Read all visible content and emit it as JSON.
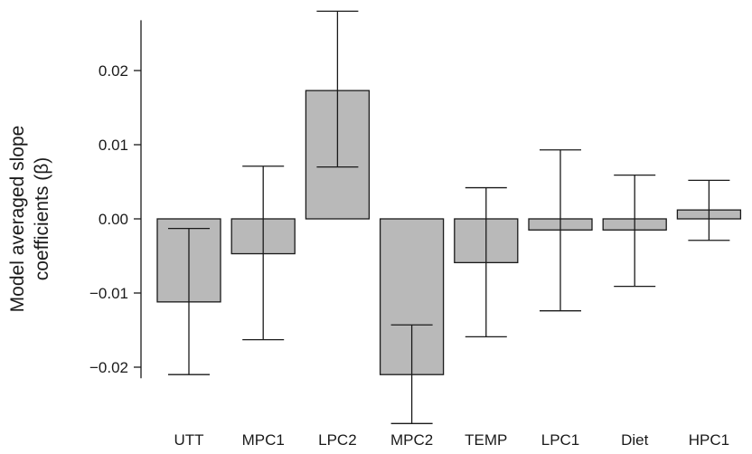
{
  "chart_data": {
    "type": "bar",
    "title": "",
    "xlabel": "",
    "ylabel_lines": [
      "Model averaged slope",
      "coefficients (β)"
    ],
    "categories": [
      "UTT",
      "MPC1",
      "LPC2",
      "MPC2",
      "TEMP",
      "LPC1",
      "Diet",
      "HPC1"
    ],
    "values": [
      -0.0112,
      -0.0047,
      0.0173,
      -0.021,
      -0.0059,
      -0.0015,
      -0.0015,
      0.0012
    ],
    "error_low": [
      -0.021,
      -0.0163,
      0.007,
      -0.0276,
      -0.0159,
      -0.0124,
      -0.0091,
      -0.0029
    ],
    "error_high": [
      -0.0013,
      0.0071,
      0.028,
      -0.0143,
      0.0042,
      0.0093,
      0.0059,
      0.0052
    ],
    "yticks": [
      "0.02",
      "0.01",
      "0.00",
      "−0.01",
      "−0.02"
    ],
    "ytick_values": [
      0.02,
      0.01,
      0.0,
      -0.01,
      -0.02
    ],
    "ylim": [
      -0.028,
      0.028
    ],
    "grid": false,
    "legend": "none",
    "bar_color": "#b9b9b9",
    "line_color": "#1a1a1a"
  }
}
